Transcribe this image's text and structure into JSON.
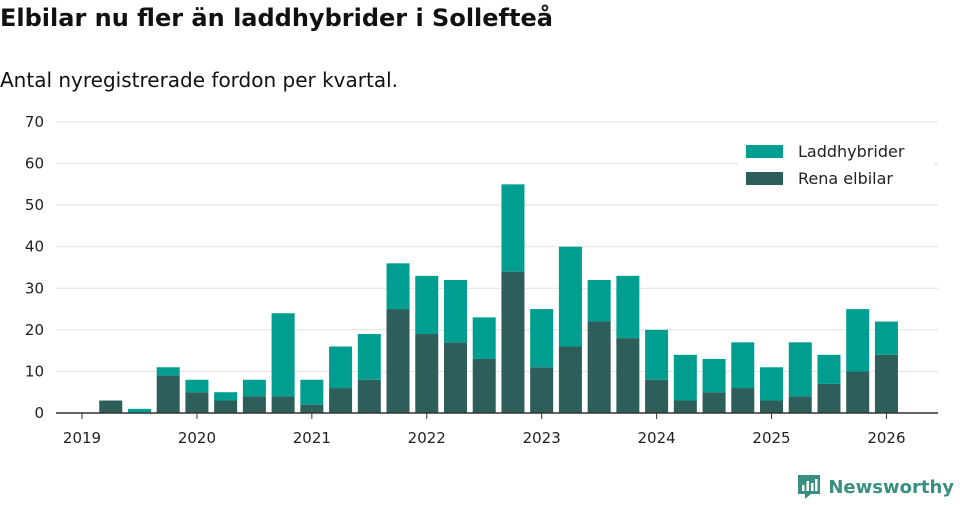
{
  "chart_data": {
    "type": "bar",
    "stacked": true,
    "title": "Elbilar nu fler än laddhybrider i Sollefteå",
    "subtitle": "Antal nyregistrerade fordon per kvartal.",
    "xlabel": "",
    "ylabel": "",
    "ylim": [
      0,
      70
    ],
    "yticks": [
      0,
      10,
      20,
      30,
      40,
      50,
      60,
      70
    ],
    "xticks": [
      "2019",
      "2020",
      "2021",
      "2022",
      "2023",
      "2024",
      "2025",
      "2026"
    ],
    "quarters": [
      "2019 Q1",
      "2019 Q2",
      "2019 Q3",
      "2019 Q4",
      "2020 Q1",
      "2020 Q2",
      "2020 Q3",
      "2020 Q4",
      "2021 Q1",
      "2021 Q2",
      "2021 Q3",
      "2021 Q4",
      "2022 Q1",
      "2022 Q2",
      "2022 Q3",
      "2022 Q4",
      "2023 Q1",
      "2023 Q2",
      "2023 Q3",
      "2023 Q4",
      "2024 Q1",
      "2024 Q2",
      "2024 Q3",
      "2024 Q4",
      "2025 Q1",
      "2025 Q2",
      "2025 Q3",
      "2025 Q4",
      "2026 Q1"
    ],
    "series": [
      {
        "name": "Rena elbilar",
        "color": "#2e5e59",
        "values": [
          0,
          3,
          0,
          9,
          5,
          3,
          4,
          4,
          2,
          6,
          8,
          25,
          19,
          17,
          13,
          34,
          11,
          16,
          22,
          18,
          8,
          3,
          5,
          6,
          3,
          4,
          7,
          10,
          14
        ]
      },
      {
        "name": "Laddhybrider",
        "color": "#009e91",
        "values": [
          0,
          0,
          1,
          2,
          3,
          2,
          4,
          20,
          6,
          10,
          11,
          11,
          14,
          15,
          10,
          21,
          14,
          24,
          10,
          15,
          12,
          11,
          8,
          11,
          8,
          13,
          7,
          15,
          8
        ]
      }
    ],
    "legend": {
      "position": "top-right",
      "order": [
        "Laddhybrider",
        "Rena elbilar"
      ]
    }
  },
  "brand": {
    "name": "Newsworthy",
    "icon": "newsworthy-logo-icon",
    "color": "#3a8f83"
  }
}
